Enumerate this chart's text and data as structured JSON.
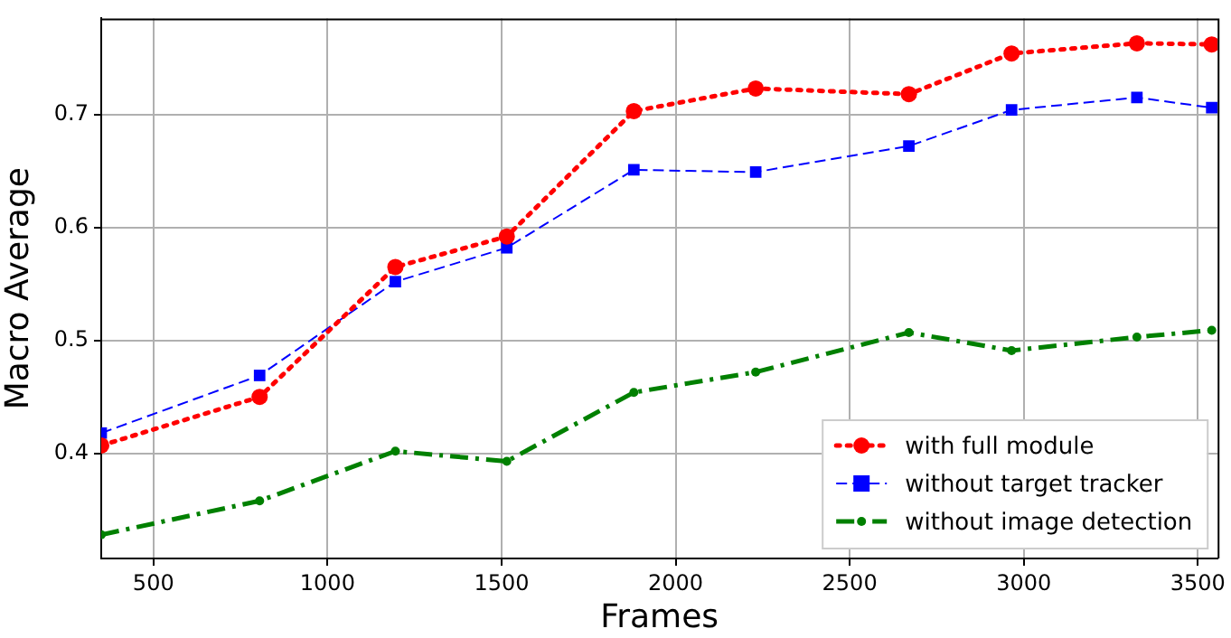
{
  "chart_data": {
    "type": "line",
    "xlabel": "Frames",
    "ylabel": "Macro Average",
    "x": [
      350,
      805,
      1195,
      1515,
      1880,
      2230,
      2670,
      2965,
      3325,
      3540
    ],
    "series": [
      {
        "name": "with full module",
        "color": "#ff0000",
        "marker": "circle",
        "line_style": "dotted",
        "values": [
          0.407,
          0.45,
          0.565,
          0.592,
          0.703,
          0.723,
          0.718,
          0.754,
          0.763,
          0.762
        ]
      },
      {
        "name": "without target tracker",
        "color": "#0000ff",
        "marker": "square",
        "line_style": "dashed",
        "values": [
          0.418,
          0.469,
          0.552,
          0.582,
          0.651,
          0.649,
          0.672,
          0.704,
          0.715,
          0.706
        ]
      },
      {
        "name": "without image detection",
        "color": "#008000",
        "marker": "circle",
        "line_style": "dashdot",
        "values": [
          0.328,
          0.358,
          0.402,
          0.393,
          0.454,
          0.472,
          0.507,
          0.491,
          0.503,
          0.509
        ]
      }
    ],
    "xlim": [
      350,
      3557
    ],
    "xticks": [
      500,
      1000,
      1500,
      2000,
      2500,
      3000,
      3500
    ],
    "ylim": [
      0.307,
      0.785
    ],
    "yticks": [
      0.4,
      0.5,
      0.6,
      0.7
    ],
    "grid": true,
    "legend": "bottom right"
  }
}
